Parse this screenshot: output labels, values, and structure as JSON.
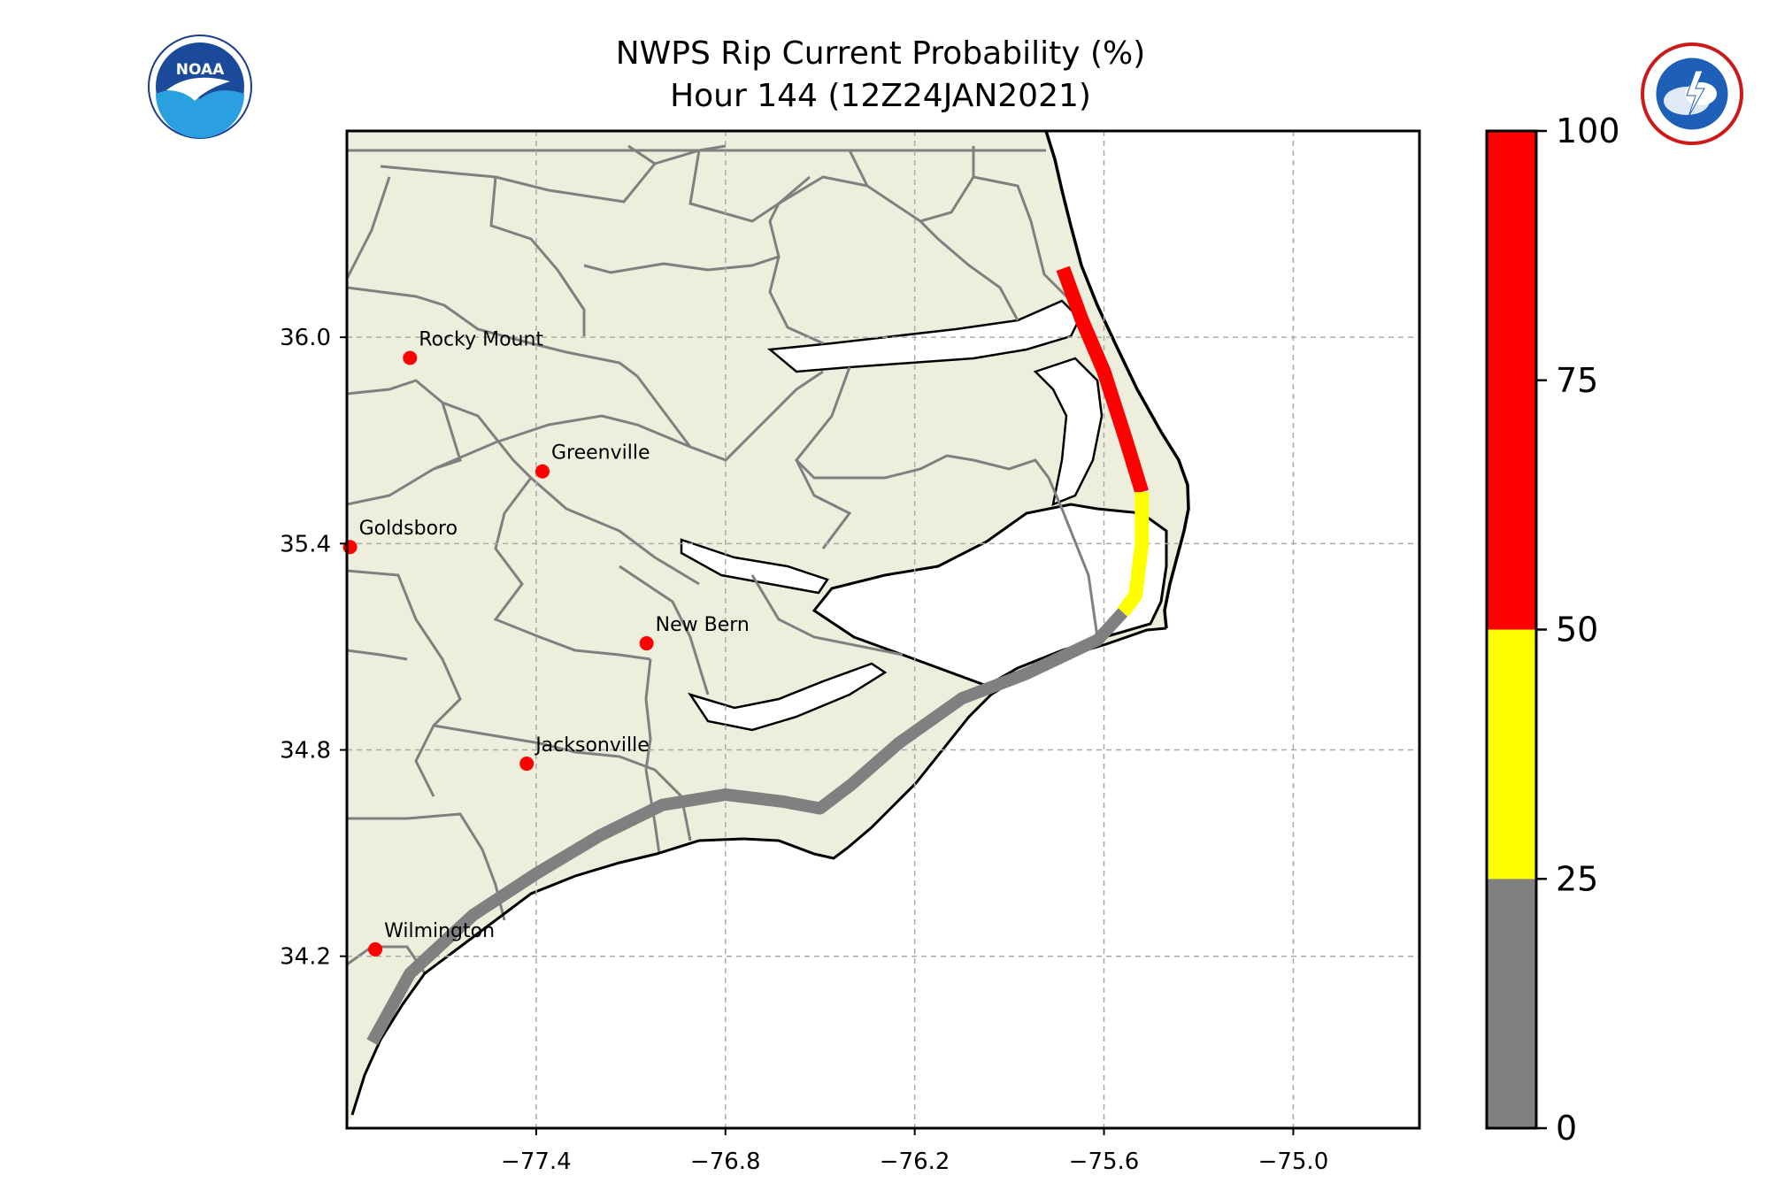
{
  "title": {
    "line1": "NWPS Rip Current Probability (%)",
    "line2": "Hour 144 (12Z24JAN2021)"
  },
  "logos": {
    "noaa": {
      "text": "NOAA",
      "icon": "noaa-logo-icon"
    },
    "nws": {
      "icon": "nws-logo-icon"
    }
  },
  "map": {
    "region": "North Carolina coast",
    "lon_range": [
      -78.0,
      -74.6
    ],
    "lat_range": [
      33.7,
      36.6
    ],
    "lon_ticks": [
      {
        "v": -77.4,
        "label": "−77.4"
      },
      {
        "v": -76.8,
        "label": "−76.8"
      },
      {
        "v": -76.2,
        "label": "−76.2"
      },
      {
        "v": -75.6,
        "label": "−75.6"
      },
      {
        "v": -75.0,
        "label": "−75.0"
      }
    ],
    "lat_ticks": [
      {
        "v": 36.0,
        "label": "36.0"
      },
      {
        "v": 35.4,
        "label": "35.4"
      },
      {
        "v": 34.8,
        "label": "34.8"
      },
      {
        "v": 34.2,
        "label": "34.2"
      }
    ],
    "gridlines": true,
    "colors": {
      "land": "#eeeedd",
      "water": "#ffffff",
      "county_lines": "#808080",
      "coastline": "#000000",
      "city_marker": "#ff0000"
    },
    "cities": [
      {
        "name": "Rocky Mount",
        "lon": -77.8,
        "lat": 35.94
      },
      {
        "name": "Greenville",
        "lon": -77.38,
        "lat": 35.61
      },
      {
        "name": "Goldsboro",
        "lon": -77.99,
        "lat": 35.39
      },
      {
        "name": "New Bern",
        "lon": -77.05,
        "lat": 35.11
      },
      {
        "name": "Jacksonville",
        "lon": -77.43,
        "lat": 34.76
      },
      {
        "name": "Wilmington",
        "lon": -77.91,
        "lat": 34.22
      }
    ],
    "rip_segments": [
      {
        "from_lat": 36.2,
        "to_lat": 35.55,
        "category": "high"
      },
      {
        "from_lat": 35.55,
        "to_lat": 35.2,
        "category": "moderate"
      },
      {
        "from_lat": 35.2,
        "to_lat": 33.9,
        "category": "low"
      }
    ]
  },
  "colorbar": {
    "ticks": [
      "0",
      "25",
      "50",
      "75",
      "100"
    ],
    "bands": [
      {
        "from": 0,
        "to": 25,
        "color": "#808080"
      },
      {
        "from": 25,
        "to": 50,
        "color": "#ffff00"
      },
      {
        "from": 50,
        "to": 100,
        "color": "#ff0000"
      }
    ],
    "range": [
      0,
      100
    ]
  }
}
